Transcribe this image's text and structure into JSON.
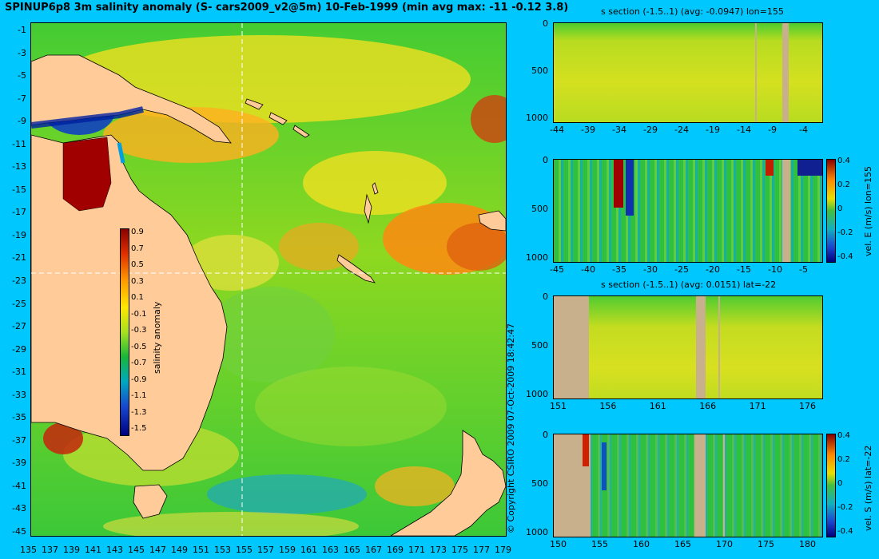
{
  "map": {
    "title": "SPINUP6p8 3m salinity anomaly (S- cars2009_v2@5m) 10-Feb-1999 (min avg max: -11 -0.12 3.8)",
    "lat_ticks": [
      "-1",
      "-3",
      "-5",
      "-7",
      "-9",
      "-11",
      "-13",
      "-15",
      "-17",
      "-19",
      "-21",
      "-23",
      "-25",
      "-27",
      "-29",
      "-31",
      "-33",
      "-35",
      "-37",
      "-39",
      "-41",
      "-43",
      "-45"
    ],
    "lon_ticks": [
      "135",
      "137",
      "139",
      "141",
      "143",
      "145",
      "147",
      "149",
      "151",
      "153",
      "155",
      "157",
      "159",
      "161",
      "163",
      "165",
      "167",
      "169",
      "171",
      "173",
      "175",
      "177",
      "179"
    ],
    "colorbar": {
      "label": "salinity anomaly",
      "ticks": [
        "0.9",
        "0.7",
        "0.5",
        "0.3",
        "0.1",
        "-0.1",
        "-0.3",
        "-0.5",
        "-0.7",
        "-0.9",
        "-1.1",
        "-1.3",
        "-1.5"
      ]
    },
    "copyright": "© Copyright CSIRO 2009   07-Oct-2009 18:42:47"
  },
  "panels": [
    {
      "title": "s section (-1.5..1) (avg: -0.0947) lon=155",
      "y_ticks": [
        "0",
        "500",
        "1000"
      ],
      "x_ticks": [
        "-44",
        "-39",
        "-34",
        "-29",
        "-24",
        "-19",
        "-14",
        "-9",
        "-4"
      ]
    },
    {
      "title": "",
      "y_ticks": [
        "0",
        "500",
        "1000"
      ],
      "x_ticks": [
        "-45",
        "-40",
        "-35",
        "-30",
        "-25",
        "-20",
        "-15",
        "-10",
        "-5"
      ],
      "colorbar_label": "vel. E (m/s) lon=155",
      "colorbar_ticks": [
        "0.4",
        "0.2",
        "0",
        "-0.2",
        "-0.4"
      ]
    },
    {
      "title": "s section (-1.5..1) (avg: 0.0151) lat=-22",
      "y_ticks": [
        "0",
        "500",
        "1000"
      ],
      "x_ticks": [
        "151",
        "156",
        "161",
        "166",
        "171",
        "176"
      ]
    },
    {
      "title": "",
      "y_ticks": [
        "0",
        "500",
        "1000"
      ],
      "x_ticks": [
        "150",
        "155",
        "160",
        "165",
        "170",
        "175",
        "180"
      ],
      "colorbar_label": "vel. S (m/s) lat=-22",
      "colorbar_ticks": [
        "0.4",
        "0.2",
        "0",
        "-0.2",
        "-0.4"
      ]
    }
  ],
  "colors": {
    "background": "#00c8ff",
    "land": "#ffcc99",
    "section_land": "#c8b08c"
  }
}
